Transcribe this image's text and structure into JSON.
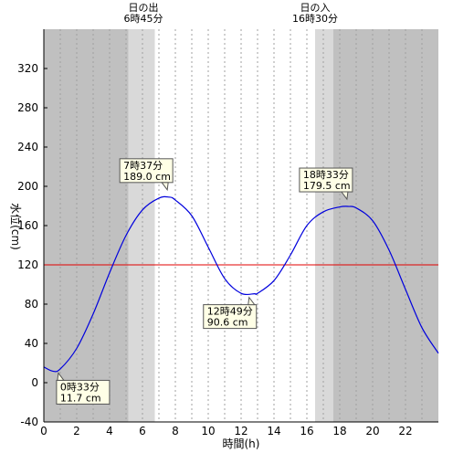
{
  "sunrise": {
    "label": "日の出",
    "time": "6時45分",
    "hour": 6.75
  },
  "sunset": {
    "label": "日の入",
    "time": "16時30分",
    "hour": 16.5
  },
  "chart_data": {
    "type": "line",
    "xlabel": "時間(h)",
    "ylabel": "水位(cm)",
    "xlim": [
      0,
      24
    ],
    "ylim": [
      -40,
      360
    ],
    "x_ticks": [
      0,
      2,
      4,
      6,
      8,
      10,
      12,
      14,
      16,
      18,
      20,
      22
    ],
    "y_ticks": [
      -40,
      0,
      40,
      80,
      120,
      160,
      200,
      240,
      280,
      320
    ],
    "reference_line": {
      "value": 120,
      "color": "#e00000"
    },
    "series": [
      {
        "color": "#0000dd",
        "x": [
          0,
          0.55,
          1,
          2,
          3,
          4,
          5,
          6,
          7,
          7.62,
          8,
          9,
          10,
          11,
          12,
          12.82,
          13,
          14,
          15,
          16,
          17,
          18,
          18.55,
          19,
          20,
          21,
          22,
          23,
          24
        ],
        "y": [
          16,
          11.7,
          14,
          35,
          70,
          112,
          150,
          176,
          188,
          189.0,
          186,
          170,
          138,
          106,
          91,
          90.6,
          91,
          104,
          130,
          160,
          174,
          179,
          179.5,
          178,
          165,
          135,
          95,
          56,
          30
        ]
      }
    ],
    "annotations": [
      {
        "time": "0時33分",
        "value": "11.7 cm",
        "x": 0.55,
        "y": 11.7,
        "placement": "below-right"
      },
      {
        "time": "7時37分",
        "value": "189.0 cm",
        "x": 7.62,
        "y": 189.0,
        "placement": "above-left"
      },
      {
        "time": "12時49分",
        "value": "90.6 cm",
        "x": 12.82,
        "y": 90.6,
        "placement": "below-left"
      },
      {
        "time": "18時33分",
        "value": "179.5 cm",
        "x": 18.55,
        "y": 179.5,
        "placement": "above-left"
      }
    ],
    "night_color": "#c0c0c0",
    "twilight_color": "#d9d9d9",
    "day_color": "#ffffff"
  }
}
